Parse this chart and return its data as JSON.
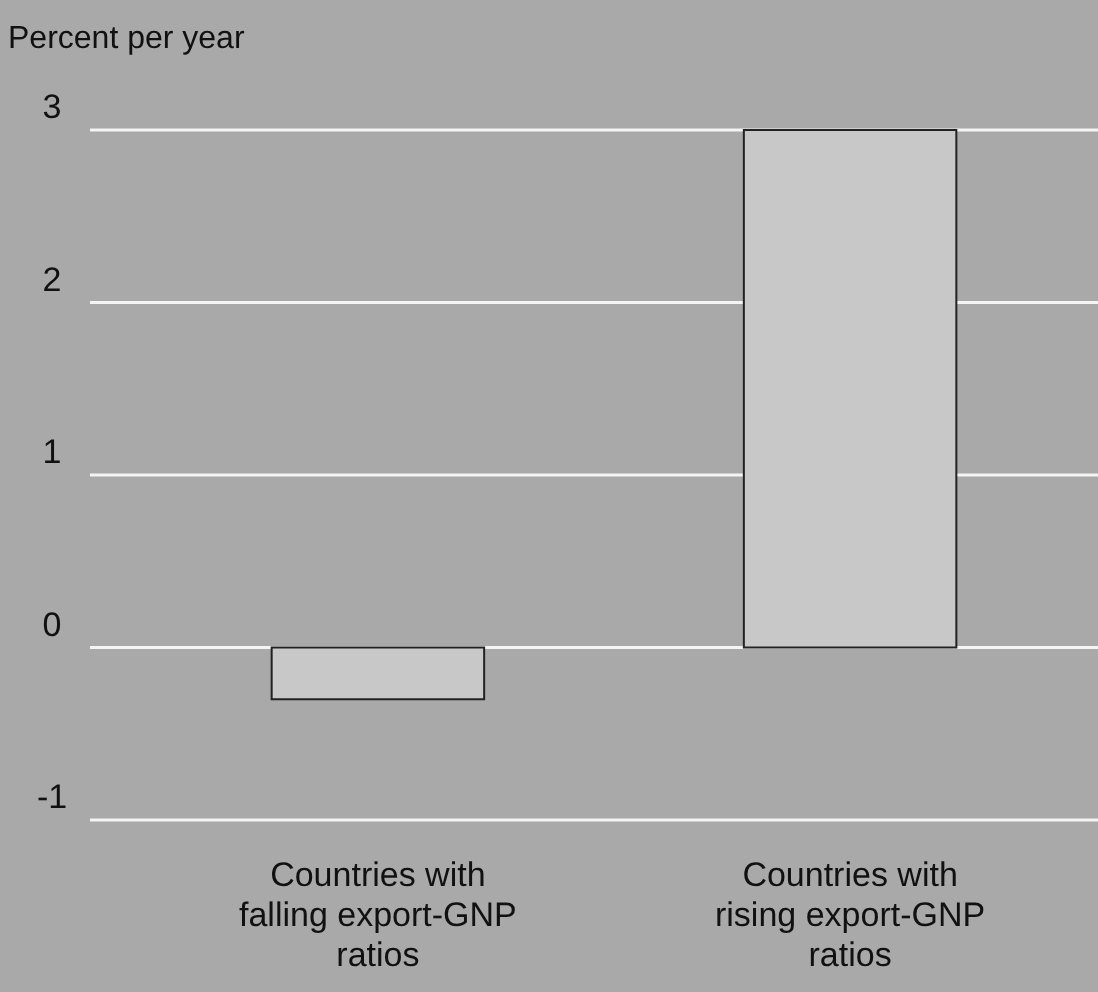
{
  "chart_data": {
    "type": "bar",
    "ylabel": "Percent per year",
    "categories": [
      "Countries with falling export-GNP ratios",
      "Countries with rising export-GNP ratios"
    ],
    "values": [
      -0.3,
      3.0
    ],
    "color": "#c8c8c8",
    "ylim": [
      -1,
      3
    ],
    "yticks": [
      -1,
      0,
      1,
      2,
      3
    ],
    "grid": "y"
  }
}
